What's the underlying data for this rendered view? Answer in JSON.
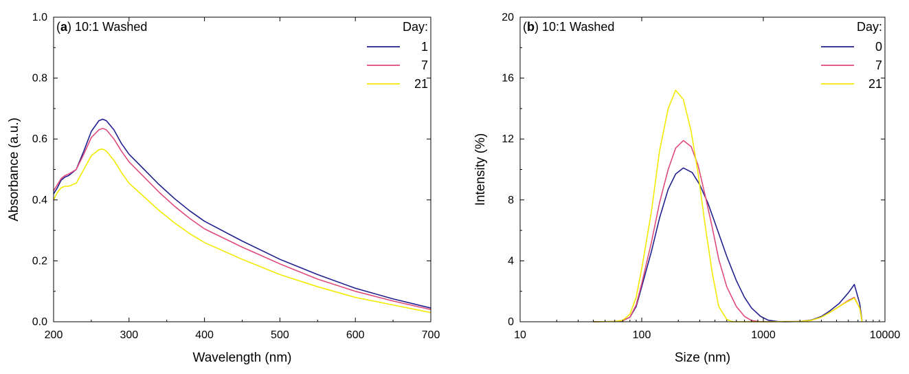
{
  "chart_data": [
    {
      "type": "line",
      "panel_label": "a",
      "title": "10:1 Washed",
      "xlabel": "Wavelength (nm)",
      "ylabel": "Absorbance (a.u.)",
      "xlim": [
        200,
        700
      ],
      "ylim": [
        0,
        1.0
      ],
      "x_scale": "linear",
      "xticks": [
        200,
        300,
        400,
        500,
        600,
        700
      ],
      "xtick_labels": [
        "200",
        "300",
        "400",
        "500",
        "600",
        "700"
      ],
      "yticks": [
        0,
        0.2,
        0.4,
        0.6,
        0.8,
        1.0
      ],
      "ytick_labels": [
        "0.0",
        "0.2",
        "0.4",
        "0.6",
        "0.8",
        "1.0"
      ],
      "grid": false,
      "legend_title": "Day:",
      "legend_position": "top-right",
      "series": [
        {
          "name": "1",
          "color": "#1f1f8f",
          "points": [
            [
              200,
              0.42
            ],
            [
              205,
              0.44
            ],
            [
              210,
              0.465
            ],
            [
              215,
              0.475
            ],
            [
              220,
              0.48
            ],
            [
              230,
              0.5
            ],
            [
              240,
              0.56
            ],
            [
              250,
              0.625
            ],
            [
              260,
              0.66
            ],
            [
              265,
              0.665
            ],
            [
              270,
              0.66
            ],
            [
              280,
              0.63
            ],
            [
              290,
              0.585
            ],
            [
              300,
              0.55
            ],
            [
              320,
              0.5
            ],
            [
              340,
              0.45
            ],
            [
              360,
              0.405
            ],
            [
              380,
              0.365
            ],
            [
              400,
              0.33
            ],
            [
              450,
              0.265
            ],
            [
              500,
              0.205
            ],
            [
              550,
              0.155
            ],
            [
              600,
              0.11
            ],
            [
              650,
              0.075
            ],
            [
              700,
              0.045
            ]
          ]
        },
        {
          "name": "7",
          "color": "#e04a7a",
          "points": [
            [
              200,
              0.43
            ],
            [
              205,
              0.45
            ],
            [
              210,
              0.47
            ],
            [
              215,
              0.48
            ],
            [
              220,
              0.485
            ],
            [
              230,
              0.5
            ],
            [
              240,
              0.55
            ],
            [
              250,
              0.605
            ],
            [
              260,
              0.63
            ],
            [
              265,
              0.635
            ],
            [
              270,
              0.63
            ],
            [
              280,
              0.6
            ],
            [
              290,
              0.56
            ],
            [
              300,
              0.525
            ],
            [
              320,
              0.475
            ],
            [
              340,
              0.425
            ],
            [
              360,
              0.38
            ],
            [
              380,
              0.34
            ],
            [
              400,
              0.305
            ],
            [
              450,
              0.245
            ],
            [
              500,
              0.19
            ],
            [
              550,
              0.14
            ],
            [
              600,
              0.1
            ],
            [
              650,
              0.068
            ],
            [
              700,
              0.04
            ]
          ]
        },
        {
          "name": "21",
          "color": "#f2ea00",
          "points": [
            [
              200,
              0.4
            ],
            [
              205,
              0.425
            ],
            [
              210,
              0.44
            ],
            [
              215,
              0.445
            ],
            [
              220,
              0.445
            ],
            [
              230,
              0.455
            ],
            [
              240,
              0.5
            ],
            [
              250,
              0.545
            ],
            [
              260,
              0.565
            ],
            [
              265,
              0.567
            ],
            [
              270,
              0.56
            ],
            [
              280,
              0.53
            ],
            [
              290,
              0.49
            ],
            [
              300,
              0.455
            ],
            [
              320,
              0.41
            ],
            [
              340,
              0.365
            ],
            [
              360,
              0.325
            ],
            [
              380,
              0.29
            ],
            [
              400,
              0.26
            ],
            [
              450,
              0.205
            ],
            [
              500,
              0.155
            ],
            [
              550,
              0.115
            ],
            [
              600,
              0.08
            ],
            [
              650,
              0.055
            ],
            [
              700,
              0.03
            ]
          ]
        }
      ]
    },
    {
      "type": "line",
      "panel_label": "b",
      "title": "10:1 Washed",
      "xlabel": "Size (nm)",
      "ylabel": "Intensity (%)",
      "xlim": [
        10,
        10000
      ],
      "ylim": [
        0,
        20
      ],
      "x_scale": "log",
      "xticks": [
        10,
        100,
        1000,
        10000
      ],
      "xtick_labels": [
        "10",
        "100",
        "1000",
        "10000"
      ],
      "yticks": [
        0,
        4,
        8,
        12,
        16,
        20
      ],
      "ytick_labels": [
        "0",
        "4",
        "8",
        "12",
        "16",
        "20"
      ],
      "grid": false,
      "legend_title": "Day:",
      "legend_position": "top-right",
      "series": [
        {
          "name": "0",
          "color": "#1f1f8f",
          "points": [
            [
              40,
              0
            ],
            [
              60,
              0.02
            ],
            [
              70,
              0.08
            ],
            [
              80,
              0.3
            ],
            [
              90,
              1.0
            ],
            [
              100,
              2.3
            ],
            [
              120,
              4.6
            ],
            [
              140,
              6.8
            ],
            [
              165,
              8.7
            ],
            [
              190,
              9.7
            ],
            [
              220,
              10.1
            ],
            [
              260,
              9.8
            ],
            [
              300,
              9.0
            ],
            [
              350,
              7.8
            ],
            [
              400,
              6.5
            ],
            [
              500,
              4.3
            ],
            [
              600,
              2.7
            ],
            [
              700,
              1.6
            ],
            [
              800,
              0.9
            ],
            [
              950,
              0.35
            ],
            [
              1100,
              0.1
            ],
            [
              1300,
              0.02
            ],
            [
              1500,
              0
            ],
            [
              2000,
              0.02
            ],
            [
              2500,
              0.12
            ],
            [
              3000,
              0.35
            ],
            [
              3500,
              0.7
            ],
            [
              4200,
              1.2
            ],
            [
              5000,
              1.9
            ],
            [
              5600,
              2.45
            ],
            [
              6200,
              1.2
            ],
            [
              6500,
              0
            ]
          ]
        },
        {
          "name": "7",
          "color": "#e04a7a",
          "points": [
            [
              40,
              0
            ],
            [
              60,
              0.02
            ],
            [
              70,
              0.08
            ],
            [
              80,
              0.3
            ],
            [
              90,
              1.1
            ],
            [
              100,
              2.5
            ],
            [
              120,
              5.2
            ],
            [
              140,
              7.8
            ],
            [
              165,
              10.0
            ],
            [
              190,
              11.4
            ],
            [
              220,
              11.9
            ],
            [
              255,
              11.5
            ],
            [
              290,
              10.3
            ],
            [
              330,
              8.4
            ],
            [
              380,
              6.2
            ],
            [
              430,
              4.1
            ],
            [
              500,
              2.3
            ],
            [
              600,
              1.0
            ],
            [
              700,
              0.35
            ],
            [
              800,
              0.08
            ],
            [
              950,
              0
            ],
            [
              2000,
              0.02
            ],
            [
              2500,
              0.1
            ],
            [
              3000,
              0.3
            ],
            [
              3500,
              0.6
            ],
            [
              4200,
              1.0
            ],
            [
              5000,
              1.4
            ],
            [
              5600,
              1.6
            ],
            [
              6200,
              0.9
            ],
            [
              6500,
              0
            ]
          ]
        },
        {
          "name": "21",
          "color": "#f2ea00",
          "points": [
            [
              40,
              0
            ],
            [
              60,
              0.02
            ],
            [
              70,
              0.1
            ],
            [
              80,
              0.5
            ],
            [
              90,
              1.6
            ],
            [
              100,
              3.5
            ],
            [
              120,
              7.2
            ],
            [
              140,
              11.2
            ],
            [
              165,
              14.0
            ],
            [
              190,
              15.2
            ],
            [
              220,
              14.6
            ],
            [
              255,
              12.5
            ],
            [
              290,
              9.8
            ],
            [
              330,
              6.5
            ],
            [
              380,
              3.2
            ],
            [
              430,
              1.0
            ],
            [
              500,
              0.15
            ],
            [
              560,
              0
            ],
            [
              1000,
              0
            ],
            [
              2000,
              0.02
            ],
            [
              2500,
              0.1
            ],
            [
              3000,
              0.3
            ],
            [
              3500,
              0.6
            ],
            [
              4200,
              1.0
            ],
            [
              5000,
              1.35
            ],
            [
              5600,
              1.55
            ],
            [
              6200,
              0.9
            ],
            [
              6500,
              0
            ]
          ]
        }
      ]
    }
  ]
}
